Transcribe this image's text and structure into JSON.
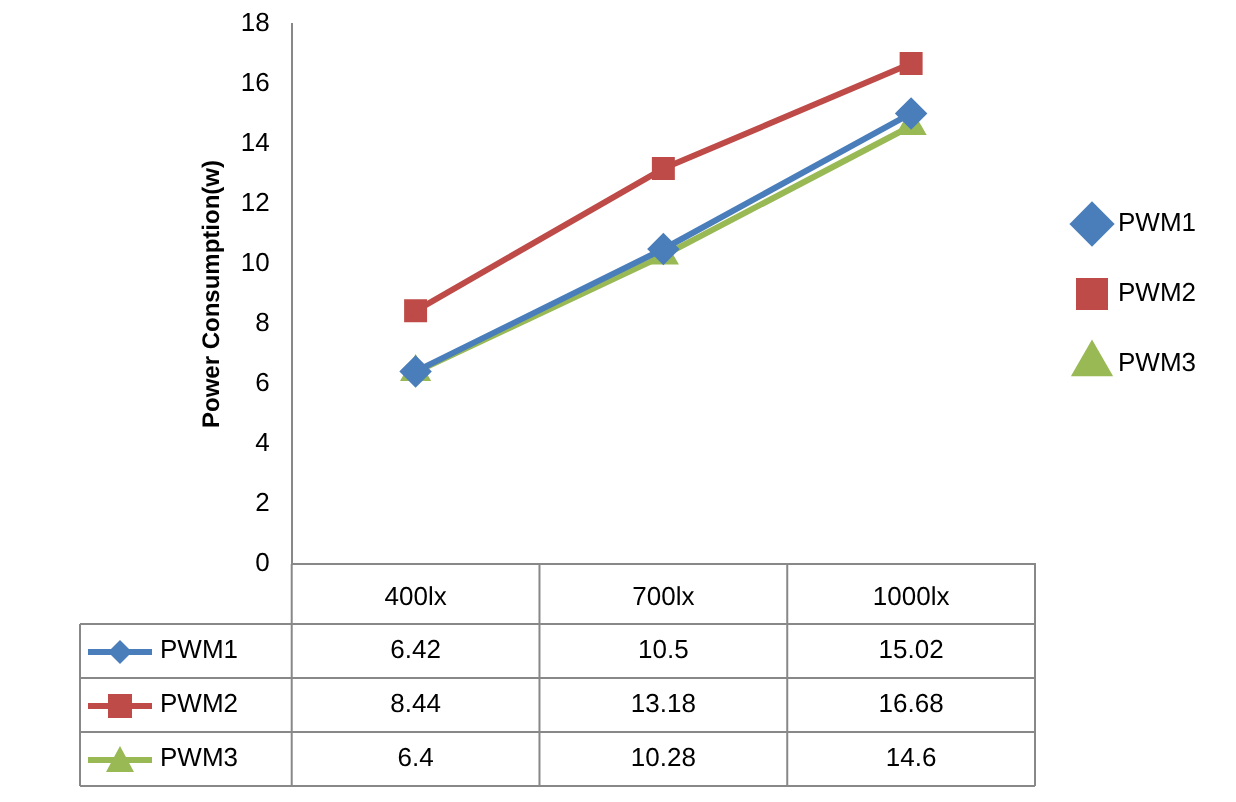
{
  "chart_data": {
    "type": "line",
    "ylabel": "Power Consumption(w)",
    "categories": [
      "400lx",
      "700lx",
      "1000lx"
    ],
    "series": [
      {
        "name": "PWM1",
        "color": "#4a7ebb",
        "marker": "diamond",
        "values": [
          6.42,
          10.5,
          15.02
        ]
      },
      {
        "name": "PWM2",
        "color": "#be4b48",
        "marker": "square",
        "values": [
          8.44,
          13.18,
          16.68
        ]
      },
      {
        "name": "PWM3",
        "color": "#98b954",
        "marker": "triangle",
        "values": [
          6.4,
          10.28,
          14.6
        ]
      }
    ],
    "ylim": [
      0,
      18
    ],
    "yticks": [
      0,
      2,
      4,
      6,
      8,
      10,
      12,
      14,
      16,
      18
    ],
    "grid": false,
    "legend": "right",
    "data_labels": true
  }
}
